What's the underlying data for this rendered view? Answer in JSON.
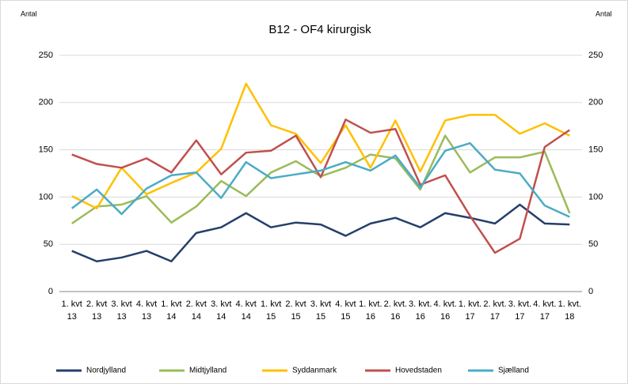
{
  "chart_data": {
    "type": "line",
    "title": "B12 - OF4 kirurgisk",
    "y_label": "Antal",
    "y2_label": "Antal",
    "categories": [
      "1. kvt 13",
      "2. kvt 13",
      "3. kvt 13",
      "4. kvt 13",
      "1. kvt 14",
      "2. kvt 14",
      "3. kvt 14",
      "4. kvt 14",
      "1. kvt 15",
      "2. kvt 15",
      "3. kvt 15",
      "4. kvt 15",
      "1. kvt. 16",
      "2. kvt. 16",
      "3. kvt. 16",
      "4. kvt. 16",
      "1. kvt. 17",
      "2. kvt. 17",
      "3. kvt. 17",
      "4. kvt. 17",
      "1. kvt. 18"
    ],
    "series": [
      {
        "name": "Nordjylland",
        "color": "#243f6b",
        "values": [
          43,
          32,
          36,
          43,
          32,
          62,
          68,
          83,
          68,
          73,
          71,
          59,
          72,
          78,
          68,
          83,
          78,
          72,
          92,
          72,
          71
        ]
      },
      {
        "name": "Midtjylland",
        "color": "#9bbb59",
        "values": [
          72,
          90,
          92,
          101,
          73,
          90,
          117,
          101,
          126,
          138,
          122,
          131,
          145,
          141,
          108,
          165,
          126,
          142,
          142,
          148,
          83
        ]
      },
      {
        "name": "Syddanmark",
        "color": "#ffc000",
        "values": [
          101,
          88,
          131,
          103,
          115,
          126,
          151,
          220,
          176,
          167,
          136,
          176,
          131,
          181,
          127,
          181,
          187,
          187,
          167,
          178,
          165
        ]
      },
      {
        "name": "Hovedstaden",
        "color": "#c0504d",
        "values": [
          145,
          135,
          131,
          141,
          126,
          160,
          124,
          147,
          149,
          165,
          121,
          182,
          168,
          172,
          113,
          123,
          80,
          41,
          56,
          153,
          171
        ]
      },
      {
        "name": "Sjælland",
        "color": "#4bacc6",
        "values": [
          88,
          108,
          82,
          109,
          123,
          126,
          99,
          137,
          120,
          124,
          128,
          137,
          128,
          144,
          110,
          149,
          157,
          129,
          125,
          91,
          79
        ]
      }
    ],
    "ylim": [
      0,
      250
    ],
    "yticks": [
      0,
      50,
      100,
      150,
      200,
      250
    ],
    "y2lim": [
      0,
      250
    ],
    "y2ticks": [
      0,
      50,
      100,
      150,
      200,
      250
    ],
    "grid": true,
    "legend": "bottom"
  }
}
